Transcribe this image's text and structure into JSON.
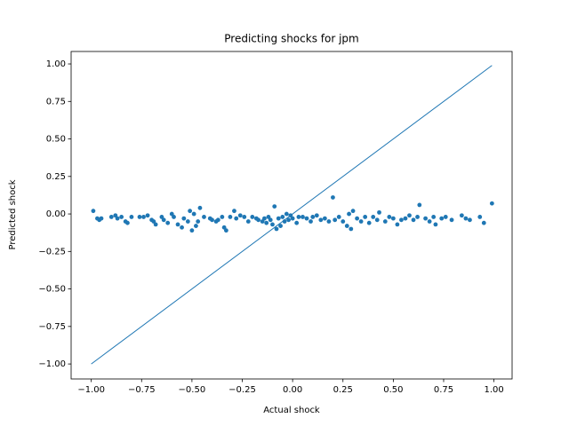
{
  "chart_data": {
    "type": "scatter",
    "title": "Predicting shocks for jpm",
    "xlabel": "Actual shock",
    "ylabel": "Predicted shock",
    "xlim": [
      -1.1,
      1.09
    ],
    "ylim": [
      -1.1,
      1.083
    ],
    "xticks": [
      {
        "value": -1,
        "label": "−1.00"
      },
      {
        "value": -0.75,
        "label": "−0.75"
      },
      {
        "value": -0.5,
        "label": "−0.50"
      },
      {
        "value": -0.25,
        "label": "−0.25"
      },
      {
        "value": 0,
        "label": "0.00"
      },
      {
        "value": 0.25,
        "label": "0.25"
      },
      {
        "value": 0.5,
        "label": "0.50"
      },
      {
        "value": 0.75,
        "label": "0.75"
      },
      {
        "value": 1,
        "label": "1.00"
      }
    ],
    "yticks": [
      {
        "value": -1,
        "label": "−1.00"
      },
      {
        "value": -0.75,
        "label": "−0.75"
      },
      {
        "value": -0.5,
        "label": "−0.50"
      },
      {
        "value": -0.25,
        "label": "−0.25"
      },
      {
        "value": 0,
        "label": "0.00"
      },
      {
        "value": 0.25,
        "label": "0.25"
      },
      {
        "value": 0.5,
        "label": "0.50"
      },
      {
        "value": 0.75,
        "label": "0.75"
      },
      {
        "value": 1,
        "label": "1.00"
      }
    ],
    "series": [
      {
        "kind": "scatter",
        "color": "#1f77b4",
        "x": [
          -0.99,
          -0.97,
          -0.96,
          -0.95,
          -0.9,
          -0.88,
          -0.87,
          -0.85,
          -0.83,
          -0.82,
          -0.8,
          -0.76,
          -0.74,
          -0.72,
          -0.7,
          -0.69,
          -0.68,
          -0.65,
          -0.64,
          -0.62,
          -0.6,
          -0.59,
          -0.57,
          -0.55,
          -0.54,
          -0.52,
          -0.51,
          -0.5,
          -0.49,
          -0.48,
          -0.47,
          -0.46,
          -0.44,
          -0.41,
          -0.4,
          -0.38,
          -0.37,
          -0.35,
          -0.34,
          -0.33,
          -0.31,
          -0.29,
          -0.28,
          -0.26,
          -0.24,
          -0.22,
          -0.2,
          -0.18,
          -0.17,
          -0.15,
          -0.14,
          -0.13,
          -0.12,
          -0.11,
          -0.1,
          -0.09,
          -0.08,
          -0.07,
          -0.06,
          -0.05,
          -0.04,
          -0.03,
          -0.02,
          -0.01,
          0,
          0.02,
          0.03,
          0.05,
          0.07,
          0.09,
          0.1,
          0.12,
          0.14,
          0.16,
          0.18,
          0.2,
          0.21,
          0.23,
          0.25,
          0.27,
          0.28,
          0.29,
          0.3,
          0.32,
          0.34,
          0.36,
          0.38,
          0.4,
          0.42,
          0.43,
          0.46,
          0.48,
          0.5,
          0.52,
          0.54,
          0.56,
          0.58,
          0.6,
          0.62,
          0.63,
          0.66,
          0.68,
          0.7,
          0.71,
          0.74,
          0.76,
          0.79,
          0.84,
          0.86,
          0.88,
          0.93,
          0.95,
          0.99
        ],
        "values": [
          0.02,
          -0.03,
          -0.04,
          -0.03,
          -0.02,
          -0.01,
          -0.03,
          -0.02,
          -0.05,
          -0.06,
          -0.02,
          -0.02,
          -0.02,
          -0.01,
          -0.04,
          -0.05,
          -0.07,
          -0.02,
          -0.04,
          -0.06,
          0,
          -0.02,
          -0.07,
          -0.09,
          -0.03,
          -0.05,
          0.02,
          -0.11,
          0,
          -0.08,
          -0.05,
          0.04,
          -0.02,
          -0.03,
          -0.04,
          -0.05,
          -0.04,
          -0.02,
          -0.09,
          -0.11,
          -0.02,
          0.02,
          -0.03,
          -0.01,
          -0.02,
          -0.05,
          -0.02,
          -0.03,
          -0.04,
          -0.05,
          -0.03,
          -0.06,
          -0.02,
          -0.04,
          -0.07,
          0.05,
          -0.1,
          -0.03,
          -0.08,
          -0.02,
          -0.05,
          0,
          -0.04,
          -0.01,
          -0.03,
          -0.06,
          -0.02,
          -0.02,
          -0.03,
          -0.05,
          -0.02,
          -0.01,
          -0.04,
          -0.03,
          -0.05,
          0.11,
          -0.04,
          -0.02,
          -0.05,
          -0.08,
          0,
          -0.1,
          0.02,
          -0.03,
          -0.05,
          -0.02,
          -0.06,
          -0.02,
          -0.04,
          0.01,
          -0.05,
          -0.02,
          -0.03,
          -0.07,
          -0.04,
          -0.03,
          -0.01,
          -0.04,
          -0.02,
          0.06,
          -0.03,
          -0.05,
          -0.02,
          -0.07,
          -0.03,
          -0.02,
          -0.04,
          -0.01,
          -0.03,
          -0.04,
          -0.02,
          -0.06,
          0.07
        ]
      },
      {
        "kind": "line",
        "color": "#1f77b4",
        "x": [
          -1,
          0.99
        ],
        "values": [
          -1,
          0.99
        ]
      }
    ]
  }
}
